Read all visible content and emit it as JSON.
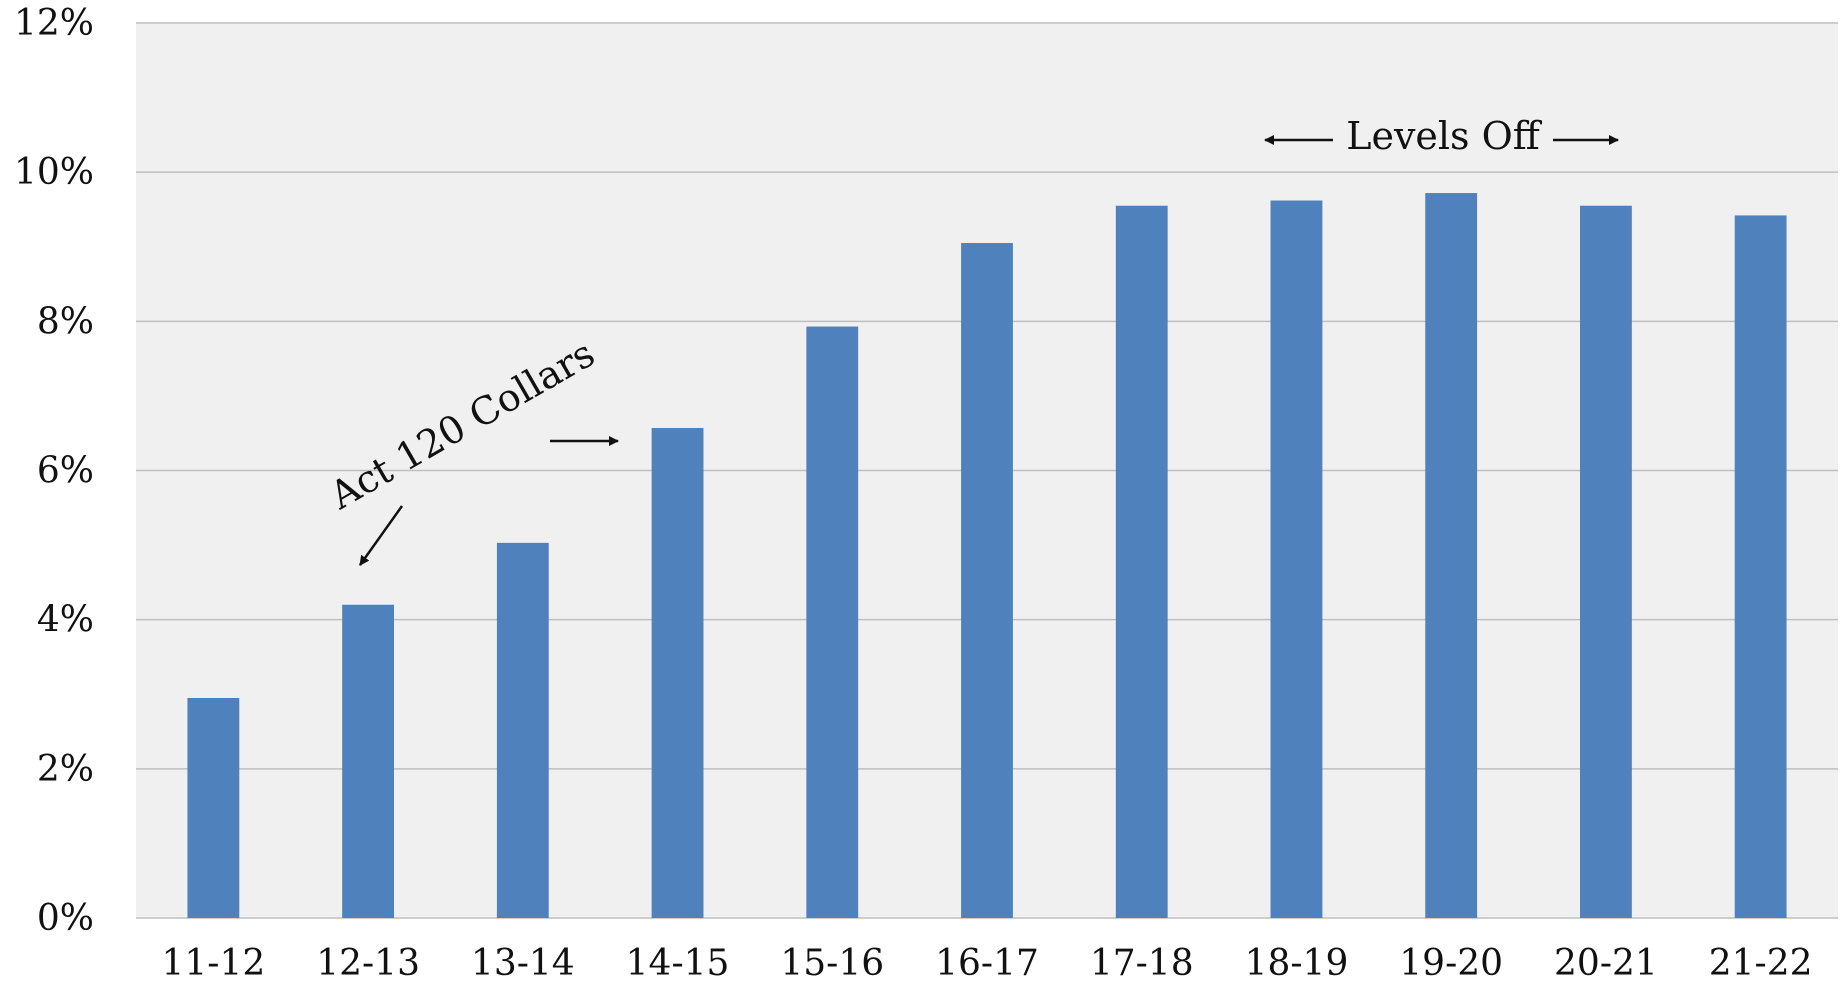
{
  "chart_data": {
    "type": "bar",
    "title": "",
    "xlabel": "",
    "ylabel": "",
    "categories": [
      "11-12",
      "12-13",
      "13-14",
      "14-15",
      "15-16",
      "16-17",
      "17-18",
      "18-19",
      "19-20",
      "20-21",
      "21-22"
    ],
    "series": [
      {
        "values": [
          2.95,
          4.2,
          5.03,
          6.57,
          7.93,
          9.05,
          9.55,
          9.62,
          9.72,
          9.55,
          9.42
        ]
      }
    ],
    "ylim": [
      0,
      12
    ],
    "yticks": [
      0,
      2,
      4,
      6,
      8,
      10,
      12
    ],
    "ytick_labels": [
      "0%",
      "2%",
      "4%",
      "6%",
      "8%",
      "10%",
      "12%"
    ],
    "grid": true,
    "legend": "none",
    "colors": {
      "bar": "#4F81BD",
      "plot_background": "#F0F0F0",
      "gridline": "#BFBFBF",
      "text": "#111111"
    },
    "annotations": [
      {
        "text": "Act 120 Collars",
        "near_category": "12-13",
        "arrows": [
          "down-left to 12-13",
          "right toward 14-15"
        ]
      },
      {
        "text": "Levels Off",
        "span_categories": [
          "18-19",
          "20-21"
        ],
        "arrows": [
          "left",
          "right"
        ]
      }
    ]
  }
}
